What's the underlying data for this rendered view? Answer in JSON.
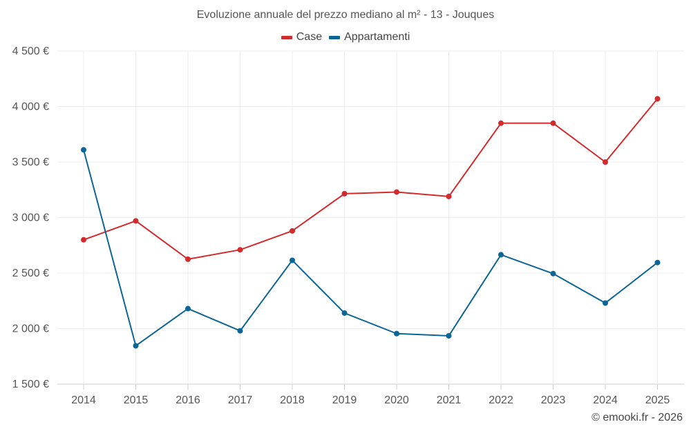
{
  "chart_data": {
    "type": "line",
    "title": "Evoluzione annuale del prezzo mediano al m² - 13 - Jouques",
    "categories": [
      "2014",
      "2015",
      "2016",
      "2017",
      "2018",
      "2019",
      "2020",
      "2021",
      "2022",
      "2023",
      "2024",
      "2025"
    ],
    "series": [
      {
        "name": "Case",
        "color": "#d42a2c",
        "values": [
          2800,
          2970,
          2625,
          2710,
          2880,
          3215,
          3230,
          3190,
          3850,
          3850,
          3500,
          4070
        ]
      },
      {
        "name": "Appartamenti",
        "color": "#0b6597",
        "values": [
          3610,
          1845,
          2180,
          1980,
          2615,
          2140,
          1955,
          1935,
          2665,
          2495,
          2230,
          2595
        ]
      }
    ],
    "ylim": [
      1500,
      4500
    ],
    "yticks": [
      1500,
      2000,
      2500,
      3000,
      3500,
      4000,
      4500
    ],
    "ytick_labels": [
      "1 500 €",
      "2 000 €",
      "2 500 €",
      "3 000 €",
      "3 500 €",
      "4 000 €",
      "4 500 €"
    ],
    "xlabel": "",
    "ylabel": "",
    "grid": true,
    "legend_position": "top-center"
  },
  "credit": "© emooki.fr - 2026"
}
